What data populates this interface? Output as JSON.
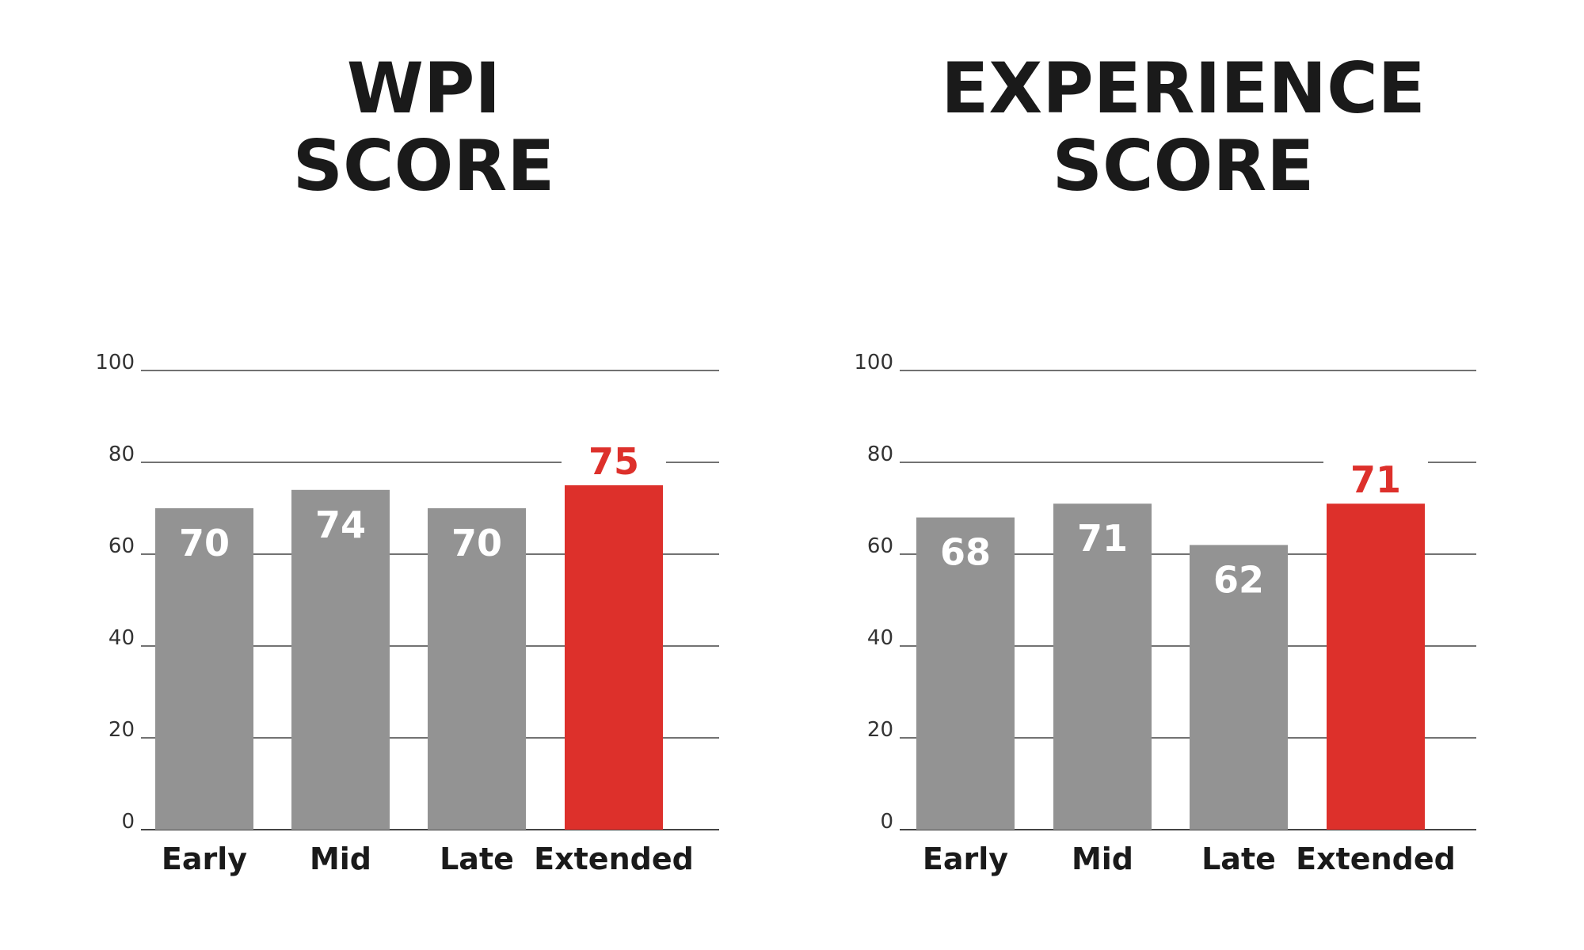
{
  "colors": {
    "bar": "#939393",
    "highlight": "#dd302b",
    "text": "#1a1a1a",
    "grid": "#444444",
    "value_on_bar": "#ffffff"
  },
  "chart_data": [
    {
      "type": "bar",
      "title": [
        "WPI",
        "SCORE"
      ],
      "categories": [
        "Early",
        "Mid",
        "Late",
        "Extended"
      ],
      "values": [
        70,
        74,
        70,
        75
      ],
      "highlight_index": 3,
      "ylim": [
        0,
        100
      ],
      "yticks": [
        0,
        20,
        40,
        60,
        80,
        100
      ],
      "xlabel": "",
      "ylabel": "",
      "grid": true
    },
    {
      "type": "bar",
      "title": [
        "EXPERIENCE",
        "SCORE"
      ],
      "categories": [
        "Early",
        "Mid",
        "Late",
        "Extended"
      ],
      "values": [
        68,
        71,
        62,
        71
      ],
      "highlight_index": 3,
      "ylim": [
        0,
        100
      ],
      "yticks": [
        0,
        20,
        40,
        60,
        80,
        100
      ],
      "xlabel": "",
      "ylabel": "",
      "grid": true
    }
  ]
}
